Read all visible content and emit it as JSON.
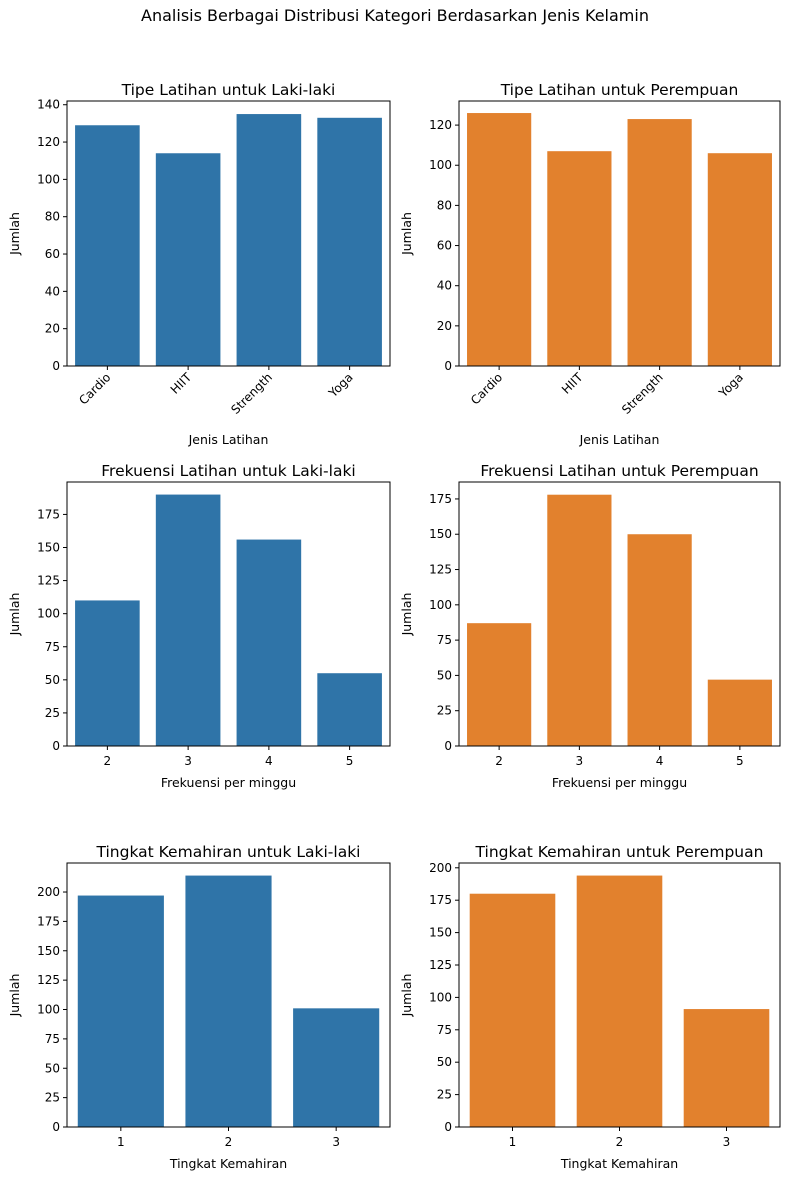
{
  "figure": {
    "title": "Analisis Berbagai Distribusi Kategori Berdasarkan Jenis Kelamin"
  },
  "colors": {
    "male": "#2f74a8",
    "female": "#e2812d"
  },
  "chart_data": [
    {
      "type": "bar",
      "title": "Tipe Latihan untuk Laki-laki",
      "xlabel": "Jenis Latihan",
      "ylabel": "Jumlah",
      "categories": [
        "Cardio",
        "HIIT",
        "Strength",
        "Yoga"
      ],
      "values": [
        129,
        114,
        135,
        133
      ],
      "ylim": [
        0,
        142
      ],
      "yticks": [
        0,
        20,
        40,
        60,
        80,
        100,
        120,
        140
      ],
      "xtick_rotation": 45,
      "color": "#2f74a8"
    },
    {
      "type": "bar",
      "title": "Tipe Latihan untuk Perempuan",
      "xlabel": "Jenis Latihan",
      "ylabel": "Jumlah",
      "categories": [
        "Cardio",
        "HIIT",
        "Strength",
        "Yoga"
      ],
      "values": [
        126,
        107,
        123,
        106
      ],
      "ylim": [
        0,
        132
      ],
      "yticks": [
        0,
        20,
        40,
        60,
        80,
        100,
        120
      ],
      "xtick_rotation": 45,
      "color": "#e2812d"
    },
    {
      "type": "bar",
      "title": "Frekuensi Latihan untuk Laki-laki",
      "xlabel": "Frekuensi per minggu",
      "ylabel": "Jumlah",
      "categories": [
        "2",
        "3",
        "4",
        "5"
      ],
      "values": [
        110,
        190,
        156,
        55
      ],
      "ylim": [
        0,
        199.5
      ],
      "yticks": [
        0,
        25,
        50,
        75,
        100,
        125,
        150,
        175
      ],
      "xtick_rotation": 0,
      "color": "#2f74a8"
    },
    {
      "type": "bar",
      "title": "Frekuensi Latihan untuk Perempuan",
      "xlabel": "Frekuensi per minggu",
      "ylabel": "Jumlah",
      "categories": [
        "2",
        "3",
        "4",
        "5"
      ],
      "values": [
        87,
        178,
        150,
        47
      ],
      "ylim": [
        0,
        187
      ],
      "yticks": [
        0,
        25,
        50,
        75,
        100,
        125,
        150,
        175
      ],
      "xtick_rotation": 0,
      "color": "#e2812d"
    },
    {
      "type": "bar",
      "title": "Tingkat Kemahiran untuk Laki-laki",
      "xlabel": "Tingkat Kemahiran",
      "ylabel": "Jumlah",
      "categories": [
        "1",
        "2",
        "3"
      ],
      "values": [
        197,
        214,
        101
      ],
      "ylim": [
        0,
        224.7
      ],
      "yticks": [
        0,
        25,
        50,
        75,
        100,
        125,
        150,
        175,
        200
      ],
      "xtick_rotation": 0,
      "color": "#2f74a8"
    },
    {
      "type": "bar",
      "title": "Tingkat Kemahiran untuk Perempuan",
      "xlabel": "Tingkat Kemahiran",
      "ylabel": "Jumlah",
      "categories": [
        "1",
        "2",
        "3"
      ],
      "values": [
        180,
        194,
        91
      ],
      "ylim": [
        0,
        203.7
      ],
      "yticks": [
        0,
        25,
        50,
        75,
        100,
        125,
        150,
        175,
        200
      ],
      "xtick_rotation": 0,
      "color": "#e2812d"
    }
  ]
}
